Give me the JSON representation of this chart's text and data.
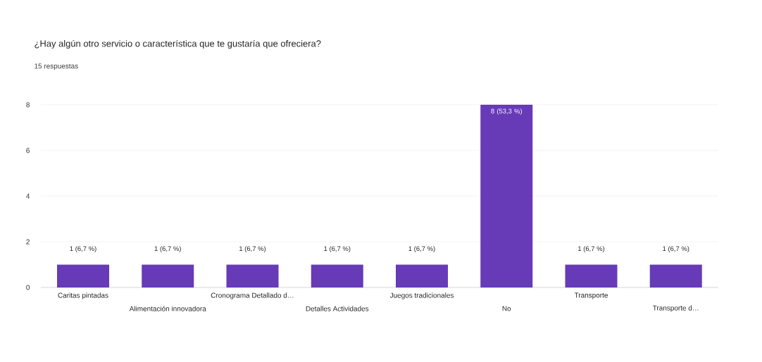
{
  "chart_data": {
    "type": "bar",
    "title": "¿Hay algún otro servicio o característica que te gustaría que ofreciera?",
    "subtitle": "15 respuestas",
    "categories": [
      "Caritas pintadas",
      "Alimentación innovadora",
      "Cronograma Detallado d…",
      "Detalles Actividades",
      "Juegos tradicionales",
      "No",
      "Transporte",
      "Transporte d…"
    ],
    "values": [
      1,
      1,
      1,
      1,
      1,
      8,
      1,
      1
    ],
    "value_labels": [
      "1 (6,7 %)",
      "1 (6,7 %)",
      "1 (6,7 %)",
      "1 (6,7 %)",
      "1 (6,7 %)",
      "8 (53,3 %)",
      "1 (6,7 %)",
      "1 (6,7 %)"
    ],
    "color": "#673ab7",
    "ylim": [
      0,
      8
    ],
    "yticks": [
      0,
      2,
      4,
      6,
      8
    ],
    "grid": "y"
  }
}
